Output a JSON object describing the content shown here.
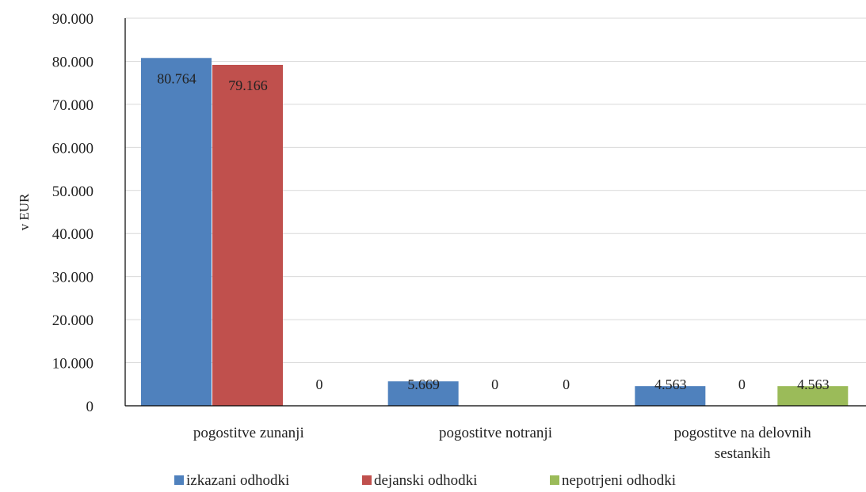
{
  "chart_data": {
    "type": "bar",
    "title": "",
    "xlabel": "",
    "ylabel": "v EUR",
    "ylim": [
      0,
      90000
    ],
    "yticks": [
      0,
      10000,
      20000,
      30000,
      40000,
      50000,
      60000,
      70000,
      80000,
      90000
    ],
    "ytick_labels": [
      "0",
      "10.000",
      "20.000",
      "30.000",
      "40.000",
      "50.000",
      "60.000",
      "70.000",
      "80.000",
      "90.000"
    ],
    "grid": true,
    "legend_position": "bottom",
    "categories": [
      [
        "pogostitve zunanji"
      ],
      [
        "pogostitve notranji"
      ],
      [
        "pogostitve na delovnih",
        "sestankih"
      ]
    ],
    "series": [
      {
        "name": "izkazani odhodki",
        "color": "#4f81bd",
        "values": [
          80764,
          5669,
          4563
        ],
        "labels": [
          "80.764",
          "5.669",
          "4.563"
        ]
      },
      {
        "name": "dejanski odhodki",
        "color": "#c0504d",
        "values": [
          79166,
          0,
          0
        ],
        "labels": [
          "79.166",
          "0",
          "0"
        ]
      },
      {
        "name": "nepotrjeni odhodki",
        "color": "#9bbb59",
        "values": [
          0,
          0,
          4563
        ],
        "labels": [
          "0",
          "0",
          "4.563"
        ]
      }
    ]
  }
}
